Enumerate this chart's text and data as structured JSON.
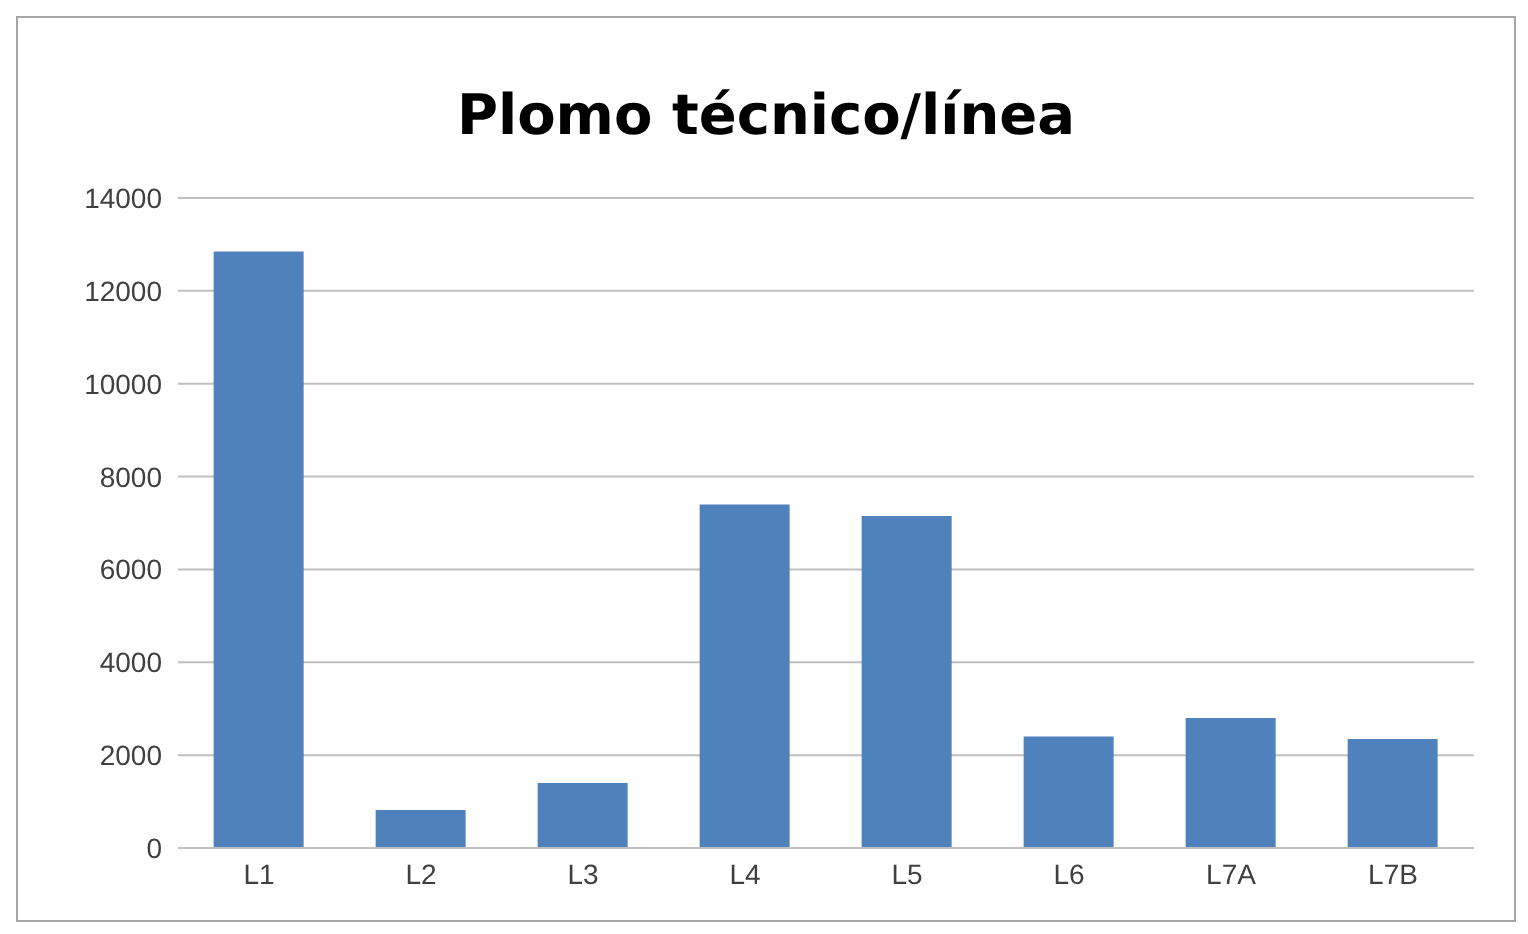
{
  "chart_data": {
    "type": "bar",
    "title": "Plomo técnico/línea",
    "categories": [
      "L1",
      "L2",
      "L3",
      "L4",
      "L5",
      "L6",
      "L7A",
      "L7B"
    ],
    "values": [
      12850,
      820,
      1400,
      7400,
      7150,
      2400,
      2800,
      2350
    ],
    "color": "#4f81bd",
    "ylim": [
      0,
      14000
    ],
    "yticks": [
      0,
      2000,
      4000,
      6000,
      8000,
      10000,
      12000,
      14000
    ],
    "grid": "y",
    "legend": false
  }
}
